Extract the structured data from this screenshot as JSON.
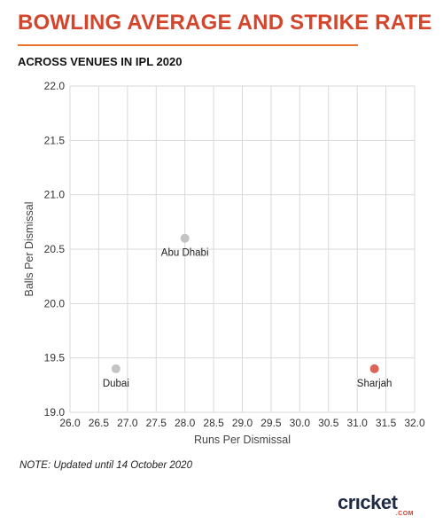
{
  "title": "BOWLING AVERAGE AND STRIKE RATE",
  "subtitle": "ACROSS VENUES IN IPL 2020",
  "note": "NOTE: Updated until 14 October 2020",
  "brand": {
    "name": "crıcket",
    "suffix": ".COM"
  },
  "colors": {
    "title": "#d4452b",
    "accent": "#e8742f",
    "grey_point": "#c4c4c4",
    "highlight_point": "#d9645a"
  },
  "chart_data": {
    "type": "scatter",
    "xlabel": "Runs Per Dismissal",
    "ylabel": "Balls Per Dismissal",
    "xlim": [
      26.0,
      32.0
    ],
    "ylim": [
      19.0,
      22.0
    ],
    "xticks": [
      "26.0",
      "26.5",
      "27.0",
      "27.5",
      "28.0",
      "28.5",
      "29.0",
      "29.5",
      "30.0",
      "30.5",
      "31.0",
      "31.5",
      "32.0"
    ],
    "yticks": [
      "19.0",
      "19.5",
      "20.0",
      "20.5",
      "21.0",
      "21.5",
      "22.0"
    ],
    "grid": true,
    "points": [
      {
        "label": "Abu Dhabi",
        "x": 28.0,
        "y": 20.6,
        "color": "#c4c4c4"
      },
      {
        "label": "Dubai",
        "x": 26.8,
        "y": 19.4,
        "color": "#c4c4c4"
      },
      {
        "label": "Sharjah",
        "x": 31.3,
        "y": 19.4,
        "color": "#d9645a"
      }
    ]
  }
}
